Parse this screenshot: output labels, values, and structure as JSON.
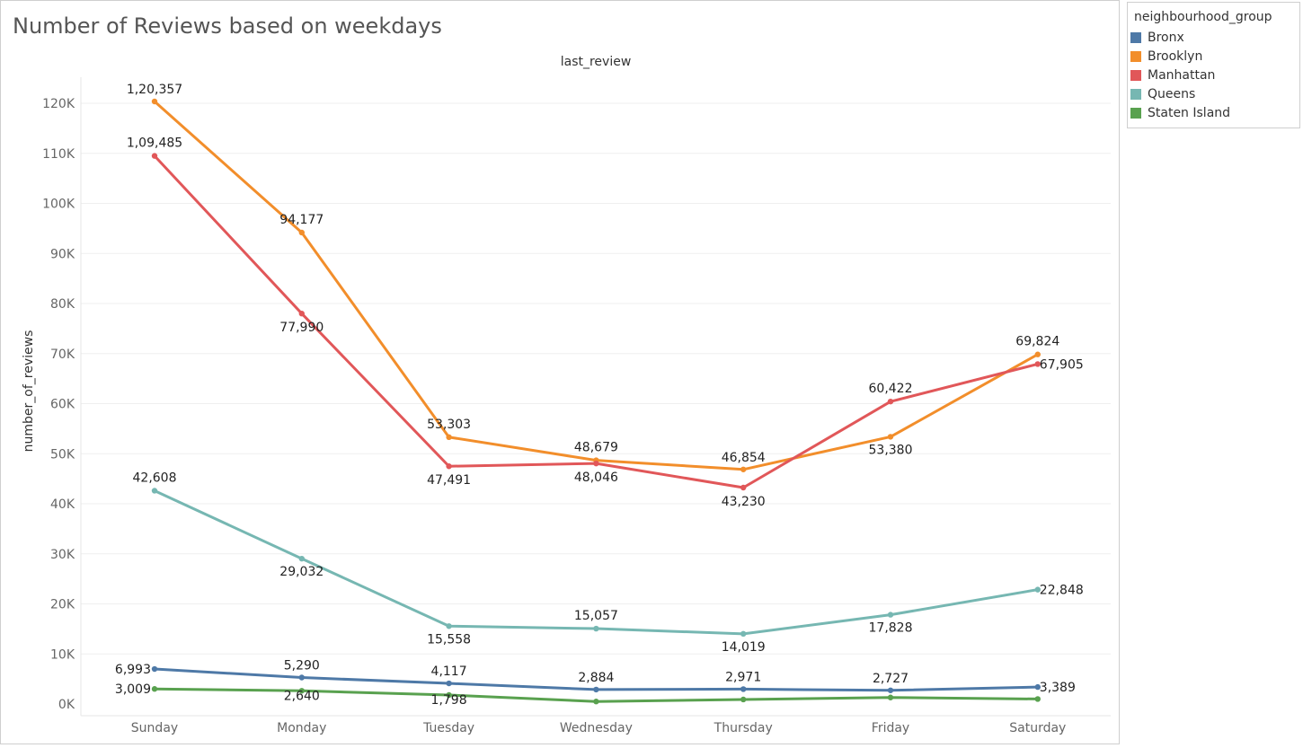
{
  "chart_data": {
    "type": "line",
    "title": "Number of Reviews based on weekdays",
    "column_header": "last_review",
    "ylabel": "number_of_reviews",
    "xlabel": "",
    "categories": [
      "Sunday",
      "Monday",
      "Tuesday",
      "Wednesday",
      "Thursday",
      "Friday",
      "Saturday"
    ],
    "ylim": [
      0,
      125000
    ],
    "yticks": [
      0,
      10000,
      20000,
      30000,
      40000,
      50000,
      60000,
      70000,
      80000,
      90000,
      100000,
      110000,
      120000
    ],
    "ytick_labels": [
      "0K",
      "10K",
      "20K",
      "30K",
      "40K",
      "50K",
      "60K",
      "70K",
      "80K",
      "90K",
      "100K",
      "110K",
      "120K"
    ],
    "grid": true,
    "legend_title": "neighbourhood_group",
    "legend_position": "right",
    "series": [
      {
        "name": "Bronx",
        "color": "#4e79a7",
        "values": [
          6993,
          5290,
          4117,
          2884,
          2971,
          2727,
          3389
        ],
        "labels": [
          "6,993",
          "5,290",
          "4,117",
          "2,884",
          "2,971",
          "2,727",
          "3,389"
        ]
      },
      {
        "name": "Brooklyn",
        "color": "#f28e2b",
        "values": [
          120357,
          94177,
          53303,
          48679,
          46854,
          53380,
          69824
        ],
        "labels": [
          "1,20,357",
          "94,177",
          "53,303",
          "48,679",
          "46,854",
          "53,380",
          "69,824"
        ]
      },
      {
        "name": "Manhattan",
        "color": "#e15759",
        "values": [
          109485,
          77990,
          47491,
          48046,
          43230,
          60422,
          67905
        ],
        "labels": [
          "1,09,485",
          "77,990",
          "47,491",
          "48,046",
          "43,230",
          "60,422",
          "67,905"
        ]
      },
      {
        "name": "Queens",
        "color": "#76b7b2",
        "values": [
          42608,
          29032,
          15558,
          15057,
          14019,
          17828,
          22848
        ],
        "labels": [
          "42,608",
          "29,032",
          "15,558",
          "15,057",
          "14,019",
          "17,828",
          "22,848"
        ]
      },
      {
        "name": "Staten Island",
        "color": "#59a14f",
        "values": [
          3009,
          2640,
          1798,
          500,
          900,
          1300,
          1000
        ],
        "labels": [
          "3,009",
          "2,640",
          "1,798",
          "",
          "",
          "",
          ""
        ]
      }
    ]
  }
}
